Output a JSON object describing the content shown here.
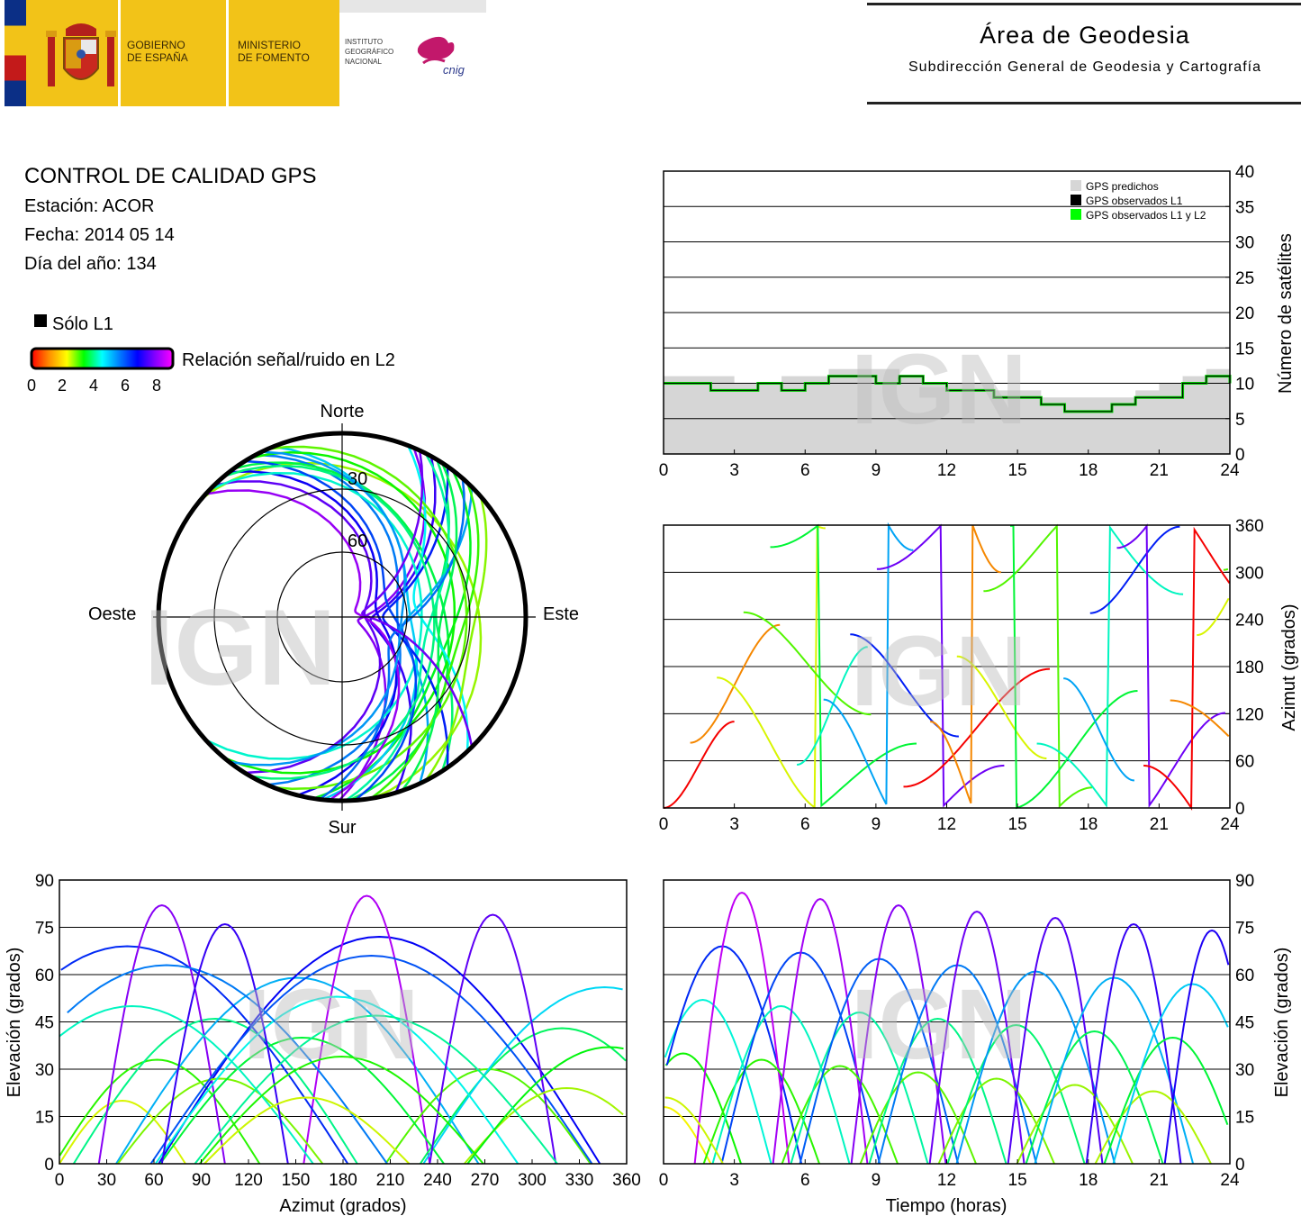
{
  "header": {
    "gov1": "GOBIERNO",
    "gov2": "DE ESPAÑA",
    "min1": "MINISTERIO",
    "min2": "DE FOMENTO",
    "ign1": "INSTITUTO",
    "ign2": "GEOGRÁFICO",
    "ign3": "NACIONAL",
    "cnig": "cnig",
    "area_title": "Área de Geodesia",
    "area_subtitle": "Subdirección General de Geodesia y Cartografía"
  },
  "info": {
    "title": "CONTROL DE CALIDAD GPS",
    "station": "Estación: ACOR",
    "date": "Fecha: 2014 05 14",
    "doy": "Día del año: 134"
  },
  "legend": {
    "l1_only": "Sólo L1",
    "snr_label": "Relación señal/ruido en L2",
    "ticks": [
      "0",
      "2",
      "4",
      "6",
      "8"
    ],
    "color_stops": [
      "#ff0000",
      "#ff8800",
      "#ffff00",
      "#00ff00",
      "#00ffff",
      "#0080ff",
      "#0000ff",
      "#8000ff",
      "#ff00ff"
    ]
  },
  "watermark": "IGN",
  "chart_data": [
    {
      "type": "polar",
      "name": "skyplot",
      "directions": {
        "north": "Norte",
        "south": "Sur",
        "east": "Este",
        "west": "Oeste"
      },
      "rings": [
        {
          "elevation": 30,
          "label": "30"
        },
        {
          "elevation": 60,
          "label": "60"
        }
      ],
      "note": "satellite tracks colored by L2 signal/noise"
    },
    {
      "type": "area",
      "name": "satellite-count",
      "xlim": [
        0,
        24
      ],
      "ylim": [
        0,
        40
      ],
      "xticks": [
        "0",
        "3",
        "6",
        "9",
        "12",
        "15",
        "18",
        "21",
        "24"
      ],
      "yticks": [
        "0",
        "5",
        "10",
        "15",
        "20",
        "25",
        "30",
        "35",
        "40"
      ],
      "ylabel": "Número de satélites",
      "legend": [
        {
          "name": "GPS predichos",
          "color": "#d6d6d6"
        },
        {
          "name": "GPS observados L1",
          "color": "#000000"
        },
        {
          "name": "GPS observados L1 y L2",
          "color": "#00ff00"
        }
      ],
      "series": [
        {
          "name": "GPS predichos",
          "x": [
            0,
            1,
            2,
            3,
            4,
            5,
            6,
            7,
            8,
            9,
            10,
            11,
            12,
            13,
            14,
            15,
            16,
            17,
            18,
            19,
            20,
            21,
            22,
            23,
            24
          ],
          "values": [
            11,
            11,
            11,
            10,
            10,
            11,
            11,
            12,
            12,
            12,
            11,
            10,
            10,
            10,
            9,
            9,
            8,
            8,
            8,
            8,
            9,
            10,
            11,
            12,
            12
          ]
        },
        {
          "name": "GPS observados L1 y L2",
          "x": [
            0,
            1,
            2,
            3,
            4,
            5,
            6,
            7,
            8,
            9,
            10,
            11,
            12,
            13,
            14,
            15,
            16,
            17,
            18,
            19,
            20,
            21,
            22,
            23,
            24
          ],
          "values": [
            10,
            10,
            9,
            9,
            10,
            9,
            10,
            11,
            11,
            10,
            11,
            10,
            9,
            9,
            8,
            8,
            7,
            6,
            6,
            7,
            8,
            8,
            10,
            11,
            10
          ]
        }
      ]
    },
    {
      "type": "scatter",
      "name": "azimuth-time",
      "xlim": [
        0,
        24
      ],
      "ylim": [
        0,
        360
      ],
      "xticks": [
        "0",
        "3",
        "6",
        "9",
        "12",
        "15",
        "18",
        "21",
        "24"
      ],
      "yticks": [
        "0",
        "60",
        "120",
        "180",
        "240",
        "300",
        "360"
      ],
      "ylabel": "Azimut (grados)"
    },
    {
      "type": "scatter",
      "name": "elevation-azimuth",
      "xlim": [
        0,
        360
      ],
      "ylim": [
        0,
        90
      ],
      "xticks": [
        "0",
        "30",
        "60",
        "90",
        "120",
        "150",
        "180",
        "210",
        "240",
        "270",
        "300",
        "330",
        "360"
      ],
      "yticks": [
        "0",
        "15",
        "30",
        "45",
        "60",
        "75",
        "90"
      ],
      "xlabel": "Azimut (grados)",
      "ylabel": "Elevación (grados)"
    },
    {
      "type": "line",
      "name": "elevation-time",
      "xlim": [
        0,
        24
      ],
      "ylim": [
        0,
        90
      ],
      "xticks": [
        "0",
        "3",
        "6",
        "9",
        "12",
        "15",
        "18",
        "21",
        "24"
      ],
      "yticks": [
        "0",
        "15",
        "30",
        "45",
        "60",
        "75",
        "90"
      ],
      "xlabel": "Tiempo (horas)",
      "ylabel": "Elevación (grados)"
    }
  ]
}
